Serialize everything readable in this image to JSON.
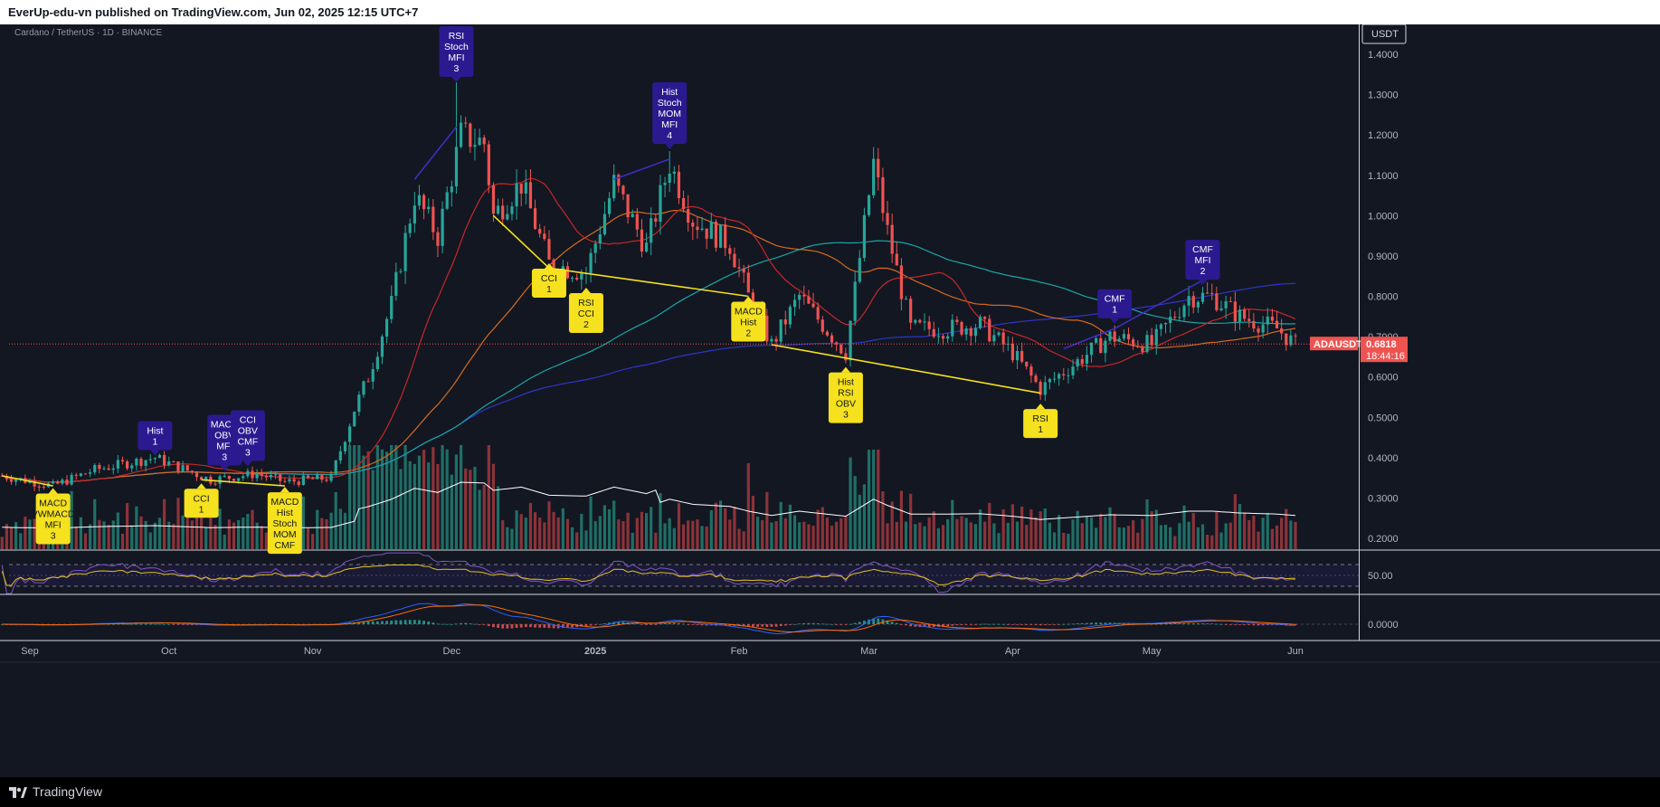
{
  "header": {
    "attribution": "EverUp-edu-vn published on TradingView.com, Jun 02, 2025 12:15 UTC+7"
  },
  "symbol_info": "Cardano / TetherUS · 1D · BINANCE",
  "currency_button": "USDT",
  "price_label": {
    "symbol": "ADAUSDT",
    "price": "0.6818",
    "countdown": "18:44:16"
  },
  "footer": {
    "brand": "TradingView"
  },
  "colors": {
    "bg": "#131722",
    "up": "#26a69a",
    "down": "#ef5350",
    "yellow": "#f5e11d",
    "purple": "#2b1a8f"
  },
  "chart_data": {
    "type": "candlestick",
    "title": "Cardano / TetherUS · 1D · BINANCE",
    "price_axis": {
      "ticks": [
        "1.4000",
        "1.3000",
        "1.2000",
        "1.1000",
        "1.0000",
        "0.9000",
        "0.8000",
        "0.7000",
        "0.6000",
        "0.5000",
        "0.4000",
        "0.3000",
        "0.2000"
      ],
      "ylim": [
        0.18,
        1.42
      ]
    },
    "time_axis": {
      "labels": [
        "Sep",
        "Oct",
        "Nov",
        "Dec",
        "2025",
        "Feb",
        "Mar",
        "Apr",
        "May",
        "Jun"
      ]
    },
    "close_path": [
      [
        "2024-08-26",
        0.355
      ],
      [
        "2024-09-06",
        0.33
      ],
      [
        "2024-09-15",
        0.37
      ],
      [
        "2024-09-28",
        0.4
      ],
      [
        "2024-10-10",
        0.345
      ],
      [
        "2024-10-20",
        0.36
      ],
      [
        "2024-10-26",
        0.34
      ],
      [
        "2024-11-05",
        0.35
      ],
      [
        "2024-11-10",
        0.52
      ],
      [
        "2024-11-13",
        0.6
      ],
      [
        "2024-11-18",
        0.78
      ],
      [
        "2024-11-23",
        1.05
      ],
      [
        "2024-11-28",
        0.95
      ],
      [
        "2024-12-03",
        1.2
      ],
      [
        "2024-12-08",
        1.18
      ],
      [
        "2024-12-10",
        1.0
      ],
      [
        "2024-12-16",
        1.08
      ],
      [
        "2024-12-22",
        0.88
      ],
      [
        "2024-12-30",
        0.86
      ],
      [
        "2025-01-05",
        1.08
      ],
      [
        "2025-01-12",
        0.92
      ],
      [
        "2025-01-17",
        1.13
      ],
      [
        "2025-01-22",
        0.99
      ],
      [
        "2025-01-30",
        0.93
      ],
      [
        "2025-02-03",
        0.8
      ],
      [
        "2025-02-08",
        0.68
      ],
      [
        "2025-02-14",
        0.8
      ],
      [
        "2025-02-24",
        0.66
      ],
      [
        "2025-03-02",
        1.13
      ],
      [
        "2025-03-05",
        0.96
      ],
      [
        "2025-03-10",
        0.72
      ],
      [
        "2025-03-18",
        0.72
      ],
      [
        "2025-03-25",
        0.73
      ],
      [
        "2025-04-01",
        0.66
      ],
      [
        "2025-04-07",
        0.57
      ],
      [
        "2025-04-14",
        0.63
      ],
      [
        "2025-04-22",
        0.7
      ],
      [
        "2025-05-01",
        0.68
      ],
      [
        "2025-05-09",
        0.8
      ],
      [
        "2025-05-14",
        0.8
      ],
      [
        "2025-05-20",
        0.75
      ],
      [
        "2025-05-28",
        0.72
      ],
      [
        "2025-06-01",
        0.68
      ]
    ],
    "spikes": [
      {
        "date": "2024-12-02",
        "high": 1.33
      },
      {
        "date": "2025-01-17",
        "high": 1.16
      },
      {
        "date": "2025-03-02",
        "high": 1.17
      }
    ],
    "annotations": [
      {
        "text": [
          "RSI",
          "Stoch",
          "MFI",
          "3"
        ],
        "type": "bearish",
        "date": "2024-12-02"
      },
      {
        "text": [
          "Hist",
          "Stoch",
          "MOM",
          "MFI",
          "4"
        ],
        "type": "bearish",
        "date": "2025-01-17"
      },
      {
        "text": [
          "Hist",
          "1"
        ],
        "type": "bearish",
        "date": "2024-09-28"
      },
      {
        "text": [
          "MACD",
          "OBV",
          "MFI",
          "3"
        ],
        "type": "bearish",
        "date": "2024-10-13"
      },
      {
        "text": [
          "CCI",
          "OBV",
          "CMF",
          "3"
        ],
        "type": "bearish",
        "date": "2024-10-18"
      },
      {
        "text": [
          "CMF",
          "1"
        ],
        "type": "bearish",
        "date": "2025-04-23"
      },
      {
        "text": [
          "CMF",
          "MFI",
          "2"
        ],
        "type": "bearish",
        "date": "2025-05-12"
      },
      {
        "text": [
          "MACD",
          "VWMACD",
          "MFI",
          "3"
        ],
        "type": "bullish",
        "date": "2024-09-06"
      },
      {
        "text": [
          "CCI",
          "1"
        ],
        "type": "bullish",
        "date": "2024-10-08"
      },
      {
        "text": [
          "MACD",
          "Hist",
          "Stoch",
          "MOM",
          "CMF"
        ],
        "type": "bullish",
        "date": "2024-10-26"
      },
      {
        "text": [
          "CCI",
          "1"
        ],
        "type": "bullish",
        "date": "2024-12-22"
      },
      {
        "text": [
          "RSI",
          "CCI",
          "2"
        ],
        "type": "bullish",
        "date": "2024-12-30"
      },
      {
        "text": [
          "MACD",
          "Hist",
          "2"
        ],
        "type": "bullish",
        "date": "2025-02-03"
      },
      {
        "text": [
          "Hist",
          "RSI",
          "OBV",
          "3"
        ],
        "type": "bullish",
        "date": "2025-02-24"
      },
      {
        "text": [
          "RSI",
          "1"
        ],
        "type": "bullish",
        "date": "2025-04-07"
      }
    ],
    "rsi_pane": {
      "level_label": "50.00"
    },
    "macd_pane": {
      "level_label": "0.0000"
    }
  }
}
